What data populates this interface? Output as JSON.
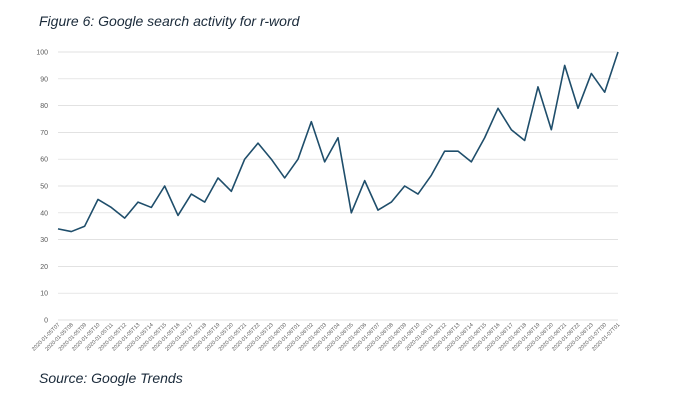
{
  "figure_title": "Figure 6: Google search activity for r-word",
  "source": "Source: Google Trends",
  "chart_data": {
    "type": "line",
    "title": "",
    "xlabel": "",
    "ylabel": "",
    "ylim": [
      0,
      100
    ],
    "yticks": [
      0,
      10,
      20,
      30,
      40,
      50,
      60,
      70,
      80,
      90,
      100
    ],
    "grid": true,
    "line_color": "#1f4e6b",
    "grid_color": "#d9d9d9",
    "x": [
      "2020-01-05T07",
      "2020-01-05T08",
      "2020-01-05T09",
      "2020-01-05T10",
      "2020-01-05T11",
      "2020-01-05T12",
      "2020-01-05T13",
      "2020-01-05T14",
      "2020-01-05T15",
      "2020-01-05T16",
      "2020-01-05T17",
      "2020-01-05T18",
      "2020-01-05T19",
      "2020-01-05T20",
      "2020-01-05T21",
      "2020-01-05T22",
      "2020-01-05T23",
      "2020-01-06T00",
      "2020-01-06T01",
      "2020-01-06T02",
      "2020-01-06T03",
      "2020-01-06T04",
      "2020-01-06T05",
      "2020-01-06T06",
      "2020-01-06T07",
      "2020-01-06T08",
      "2020-01-06T09",
      "2020-01-06T10",
      "2020-01-06T11",
      "2020-01-06T12",
      "2020-01-06T13",
      "2020-01-06T14",
      "2020-01-06T15",
      "2020-01-06T16",
      "2020-01-06T17",
      "2020-01-06T18",
      "2020-01-06T19",
      "2020-01-06T20",
      "2020-01-06T21",
      "2020-01-06T22",
      "2020-01-06T23",
      "2020-01-07T00",
      "2020-01-07T01"
    ],
    "values": [
      34,
      33,
      35,
      45,
      42,
      38,
      44,
      42,
      50,
      39,
      47,
      44,
      53,
      48,
      60,
      66,
      60,
      53,
      60,
      74,
      59,
      68,
      40,
      52,
      41,
      44,
      50,
      47,
      54,
      63,
      63,
      59,
      68,
      79,
      71,
      67,
      87,
      71,
      95,
      79,
      92,
      85,
      100
    ]
  }
}
